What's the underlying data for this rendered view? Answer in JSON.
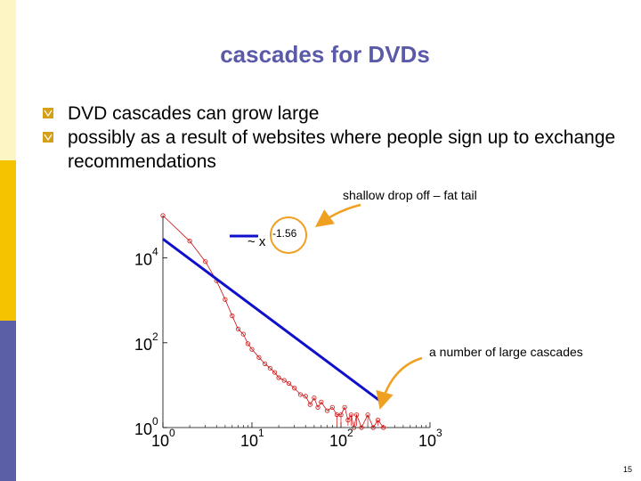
{
  "slide": {
    "title": "cascades for DVDs",
    "bullets": [
      "DVD cascades can grow large",
      "possibly as a result of websites where people sign up to exchange recommendations"
    ],
    "page_number": "15"
  },
  "theme": {
    "title_color": "#5a5aa8",
    "bullet_color": "#d4a017",
    "sidebar_colors": [
      "#fdf6c4",
      "#f5c400",
      "#5b5fa6"
    ],
    "data_color": "#cc1111",
    "fit_color": "#1010cc",
    "arrow_color": "#f0a020"
  },
  "chart_data": {
    "type": "scatter",
    "title": "",
    "xlabel": "",
    "ylabel": "",
    "xscale": "log",
    "yscale": "log",
    "xlim": [
      1,
      1000
    ],
    "ylim": [
      1,
      100000
    ],
    "x_ticks": [
      {
        "base": "10",
        "exp": "0",
        "value": 1
      },
      {
        "base": "10",
        "exp": "1",
        "value": 10
      },
      {
        "base": "10",
        "exp": "2",
        "value": 100
      },
      {
        "base": "10",
        "exp": "3",
        "value": 1000
      }
    ],
    "y_ticks": [
      {
        "base": "10",
        "exp": "0",
        "value": 1
      },
      {
        "base": "10",
        "exp": "2",
        "value": 100
      },
      {
        "base": "10",
        "exp": "4",
        "value": 10000
      }
    ],
    "series": [
      {
        "name": "",
        "style": "line-markers",
        "x": [
          1,
          2,
          3,
          4,
          5,
          6,
          7,
          8,
          9,
          10,
          12,
          14,
          16,
          18,
          20,
          23,
          26,
          30,
          35,
          40,
          45,
          50,
          55,
          60,
          70,
          80,
          90,
          100,
          110,
          120,
          130,
          140,
          150,
          170,
          200,
          230,
          260,
          300
        ],
        "y": [
          100000,
          25000,
          8200,
          2900,
          1050,
          430,
          210,
          160,
          95,
          70,
          45,
          32,
          25,
          20,
          15,
          13,
          11,
          8.5,
          6,
          5.5,
          3.5,
          5,
          3,
          4,
          2.5,
          3,
          2,
          2,
          3,
          1.5,
          2,
          1,
          2,
          1,
          2,
          1,
          1.5,
          1
        ]
      },
      {
        "name": "~ x",
        "name_exponent": "-1.56",
        "style": "line",
        "x": [
          1,
          300
        ],
        "y": [
          28000,
          3.7
        ]
      }
    ],
    "annotations": [
      {
        "text": "shallow drop off – fat tail"
      },
      {
        "text": "a number of large cascades"
      }
    ]
  }
}
